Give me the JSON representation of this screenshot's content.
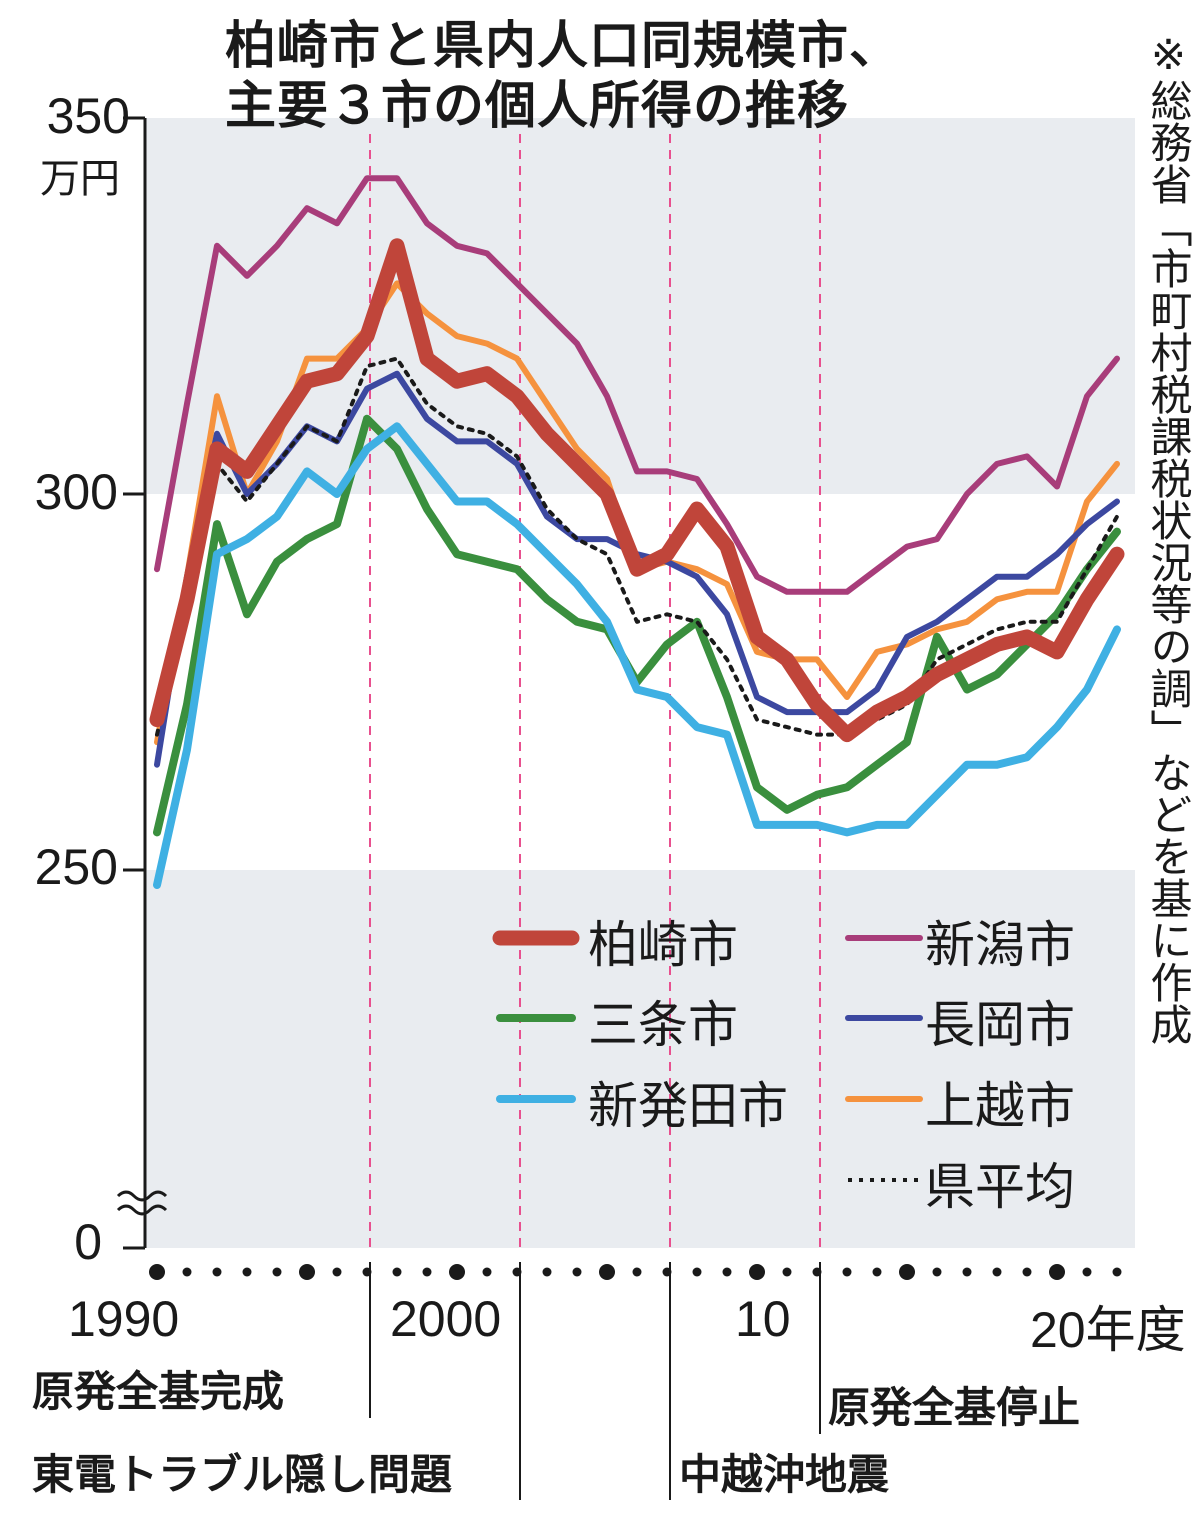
{
  "title_lines": [
    "柏崎市と県内人口同規模市、",
    "主要３市の個人所得の推移"
  ],
  "note": "※総務省「市町村税課税状況等の調」などを基に作成",
  "y_unit": "万円",
  "y_ticks": [
    "350",
    "300",
    "250",
    "0"
  ],
  "x_labels": [
    "1990",
    "2000",
    "10",
    "20年度"
  ],
  "events": [
    {
      "label": "原発全基完成",
      "year": 1997
    },
    {
      "label": "東電トラブル隠し問題",
      "year": 2002
    },
    {
      "label": "中越沖地震",
      "year": 2007
    },
    {
      "label": "原発全基停止",
      "year": 2012
    }
  ],
  "colors": {
    "band": "#e9ecf0",
    "event_line": "#e8508f",
    "axis": "#1a1a1a"
  },
  "chart_data": {
    "type": "line",
    "title": "柏崎市と県内人口同規模市、主要３市の個人所得の推移",
    "ylabel": "万円",
    "xlabel": "年度",
    "ylim": [
      250,
      350
    ],
    "y_axis_break": "0",
    "x": [
      1990,
      1991,
      1992,
      1993,
      1994,
      1995,
      1996,
      1997,
      1998,
      1999,
      2000,
      2001,
      2002,
      2003,
      2004,
      2005,
      2006,
      2007,
      2008,
      2009,
      2010,
      2011,
      2012,
      2013,
      2014,
      2015,
      2016,
      2017,
      2018,
      2019,
      2020,
      2021,
      2022
    ],
    "series": [
      {
        "name": "柏崎市",
        "color": "#c0453a",
        "width": 15,
        "dash": "",
        "values": [
          270,
          286,
          306,
          303,
          309,
          315,
          316,
          321,
          333,
          318,
          315,
          316,
          313,
          308,
          304,
          300,
          290,
          292,
          298,
          293,
          281,
          278,
          272,
          268,
          271,
          273,
          276,
          278,
          280,
          281,
          279,
          286,
          292
        ]
      },
      {
        "name": "新潟市",
        "color": "#a83d7a",
        "width": 6,
        "dash": "",
        "values": [
          290,
          312,
          333,
          329,
          333,
          338,
          336,
          342,
          342,
          336,
          333,
          332,
          328,
          324,
          320,
          313,
          303,
          303,
          302,
          296,
          289,
          287,
          287,
          287,
          290,
          293,
          294,
          300,
          304,
          305,
          301,
          313,
          318
        ]
      },
      {
        "name": "三条市",
        "color": "#3a8f3e",
        "width": 8,
        "dash": "",
        "values": [
          255,
          272,
          296,
          284,
          291,
          294,
          296,
          310,
          306,
          298,
          292,
          291,
          290,
          286,
          283,
          282,
          275,
          280,
          283,
          273,
          261,
          258,
          260,
          261,
          264,
          267,
          281,
          274,
          276,
          280,
          284,
          290,
          295
        ]
      },
      {
        "name": "長岡市",
        "color": "#3c48a0",
        "width": 6,
        "dash": "",
        "values": [
          264,
          289,
          308,
          300,
          304,
          309,
          307,
          314,
          316,
          310,
          307,
          307,
          304,
          297,
          294,
          294,
          292,
          291,
          289,
          284,
          273,
          271,
          271,
          271,
          274,
          281,
          283,
          286,
          289,
          289,
          292,
          296,
          299
        ]
      },
      {
        "name": "新発田市",
        "color": "#3fb0e3",
        "width": 8,
        "dash": "",
        "values": [
          248,
          266,
          292,
          294,
          297,
          303,
          300,
          306,
          309,
          304,
          299,
          299,
          296,
          292,
          288,
          283,
          274,
          273,
          269,
          268,
          256,
          256,
          256,
          255,
          256,
          256,
          260,
          264,
          264,
          265,
          269,
          274,
          282
        ]
      },
      {
        "name": "上越市",
        "color": "#f5923e",
        "width": 6,
        "dash": "",
        "values": [
          267,
          289,
          313,
          300,
          307,
          318,
          318,
          322,
          328,
          324,
          321,
          320,
          318,
          312,
          306,
          302,
          290,
          291,
          290,
          288,
          279,
          278,
          278,
          273,
          279,
          280,
          282,
          283,
          286,
          287,
          287,
          299,
          304
        ]
      },
      {
        "name": "県平均",
        "color": "#1a1a1a",
        "width": 4,
        "dash": "4,7",
        "values": [
          268,
          285,
          304,
          299,
          304,
          309,
          307,
          317,
          318,
          312,
          309,
          308,
          305,
          298,
          294,
          292,
          283,
          284,
          283,
          278,
          270,
          269,
          268,
          268,
          270,
          272,
          278,
          280,
          282,
          283,
          283,
          290,
          297
        ]
      }
    ],
    "legend_placement": "bottom-right",
    "grid": false
  }
}
